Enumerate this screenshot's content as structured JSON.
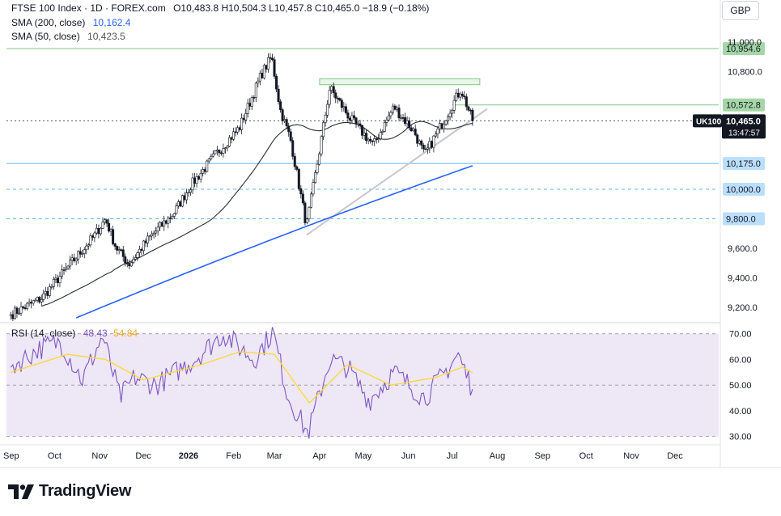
{
  "header": {
    "title": "FTSE 100 Index · 1D · FOREX.com",
    "ohlc": "O10,483.8  H10,504.3  L10,457.8  C10,465.0  −18.9 (−0.18%)",
    "sma200_label": "SMA (200, close)",
    "sma200_value": "10,162.4",
    "sma50_label": "SMA (50, close)",
    "sma50_value": "10,423.5",
    "currency": "GBP"
  },
  "rsi_header": {
    "label": "RSI (14, close)",
    "rsi_value": "48.43",
    "ma_value": "54.84"
  },
  "price_badge": {
    "symbol": "UK100",
    "price": "10,465.0",
    "countdown": "13:47:57"
  },
  "branding": {
    "name": "TradingView"
  },
  "colors": {
    "up": "#131722",
    "down": "#131722",
    "sma50": "#2a2e39",
    "sma200": "#2962ff",
    "rsi": "#7e57c2",
    "rsi_ma": "#fdd835",
    "rsi_band": "#ede7f6",
    "green_zone": "#a5d6a7",
    "blue_level": "#90caf9",
    "trendline": "#c7c7cc"
  },
  "chart_data": [
    {
      "type": "candlestick",
      "title": "FTSE 100 Index · 1D · FOREX.com",
      "x_labels": [
        "Sep",
        "Oct",
        "Nov",
        "Dec",
        "2026",
        "Feb",
        "Mar",
        "Apr",
        "May",
        "Jun",
        "Jul",
        "Aug",
        "Sep",
        "Oct",
        "Nov",
        "Dec"
      ],
      "y_ticks": [
        9200,
        9400,
        9600,
        9800,
        10000,
        10175,
        10465,
        10572.8,
        10800,
        10954.6,
        11000
      ],
      "y_tick_labels": [
        "9,200.0",
        "9,400.0",
        "9,600.0",
        "9,800.0",
        "10,000.0",
        "10,175.0",
        "10,465.0",
        "10,572.8",
        "10,800.0",
        "10,954.6",
        "11,000.0"
      ],
      "ylim": [
        9100,
        11120
      ],
      "close_anchors": [
        {
          "date": "2025-09-01",
          "close": 9150
        },
        {
          "date": "2025-09-22",
          "close": 9260
        },
        {
          "date": "2025-10-10",
          "close": 9470
        },
        {
          "date": "2025-10-28",
          "close": 9680
        },
        {
          "date": "2025-11-05",
          "close": 9800
        },
        {
          "date": "2025-11-12",
          "close": 9610
        },
        {
          "date": "2025-11-21",
          "close": 9490
        },
        {
          "date": "2025-12-05",
          "close": 9670
        },
        {
          "date": "2025-12-22",
          "close": 9840
        },
        {
          "date": "2026-01-02",
          "close": 10020
        },
        {
          "date": "2026-01-20",
          "close": 10240
        },
        {
          "date": "2026-02-05",
          "close": 10420
        },
        {
          "date": "2026-02-20",
          "close": 10780
        },
        {
          "date": "2026-02-27",
          "close": 10900
        },
        {
          "date": "2026-03-05",
          "close": 10540
        },
        {
          "date": "2026-03-12",
          "close": 10340
        },
        {
          "date": "2026-03-23",
          "close": 9750
        },
        {
          "date": "2026-03-31",
          "close": 10210
        },
        {
          "date": "2026-04-08",
          "close": 10690
        },
        {
          "date": "2026-04-22",
          "close": 10480
        },
        {
          "date": "2026-05-08",
          "close": 10300
        },
        {
          "date": "2026-05-22",
          "close": 10560
        },
        {
          "date": "2026-06-05",
          "close": 10390
        },
        {
          "date": "2026-06-12",
          "close": 10230
        },
        {
          "date": "2026-06-26",
          "close": 10480
        },
        {
          "date": "2026-07-07",
          "close": 10680
        },
        {
          "date": "2026-07-15",
          "close": 10465
        }
      ],
      "series": [
        {
          "name": "SMA (200, close)",
          "last": 10162.4
        },
        {
          "name": "SMA (50, close)",
          "last": 10423.5
        }
      ],
      "levels": [
        {
          "value": 10954.6,
          "label": "10,954.6"
        },
        {
          "value": 10572.8,
          "label": "10,572.8"
        },
        {
          "value": 10175.0,
          "label": "10,175.0"
        },
        {
          "value": 10000.0,
          "label": "10,000.0"
        },
        {
          "value": 9800.0,
          "label": "9,800.0"
        }
      ],
      "resistance_zone": {
        "from": "2026-04-01",
        "to": "2026-07-20",
        "low": 10710,
        "high": 10750
      },
      "trendline": {
        "from": {
          "date": "2026-03-23",
          "value": 9690
        },
        "to": {
          "date": "2026-07-25",
          "value": 10545
        }
      }
    },
    {
      "type": "line",
      "title": "RSI (14, close)",
      "y_ticks": [
        30,
        40,
        50,
        60,
        70
      ],
      "y_tick_labels": [
        "30.00",
        "40.00",
        "50.00",
        "60.00",
        "70.00"
      ],
      "ylim": [
        28,
        74
      ],
      "band": [
        30,
        70
      ],
      "series": [
        {
          "name": "RSI",
          "last": 48.43,
          "anchors": [
            {
              "date": "2025-09-01",
              "value": 57
            },
            {
              "date": "2025-09-20",
              "value": 64
            },
            {
              "date": "2025-10-05",
              "value": 67
            },
            {
              "date": "2025-10-20",
              "value": 52
            },
            {
              "date": "2025-11-03",
              "value": 69
            },
            {
              "date": "2025-11-15",
              "value": 45
            },
            {
              "date": "2025-11-25",
              "value": 53
            },
            {
              "date": "2025-12-10",
              "value": 50
            },
            {
              "date": "2026-01-05",
              "value": 60
            },
            {
              "date": "2026-01-25",
              "value": 70
            },
            {
              "date": "2026-02-15",
              "value": 60
            },
            {
              "date": "2026-02-28",
              "value": 71
            },
            {
              "date": "2026-03-10",
              "value": 46
            },
            {
              "date": "2026-03-24",
              "value": 31
            },
            {
              "date": "2026-04-08",
              "value": 60
            },
            {
              "date": "2026-04-20",
              "value": 57
            },
            {
              "date": "2026-05-05",
              "value": 44
            },
            {
              "date": "2026-05-22",
              "value": 55
            },
            {
              "date": "2026-06-12",
              "value": 45
            },
            {
              "date": "2026-06-25",
              "value": 54
            },
            {
              "date": "2026-07-05",
              "value": 62
            },
            {
              "date": "2026-07-15",
              "value": 48.43
            }
          ]
        },
        {
          "name": "RSI MA",
          "last": 54.84,
          "anchors": [
            {
              "date": "2025-09-01",
              "value": 55
            },
            {
              "date": "2025-10-10",
              "value": 62
            },
            {
              "date": "2025-11-05",
              "value": 60
            },
            {
              "date": "2025-12-01",
              "value": 52
            },
            {
              "date": "2026-01-10",
              "value": 58
            },
            {
              "date": "2026-02-05",
              "value": 63
            },
            {
              "date": "2026-03-01",
              "value": 62
            },
            {
              "date": "2026-03-25",
              "value": 43
            },
            {
              "date": "2026-04-20",
              "value": 58
            },
            {
              "date": "2026-05-20",
              "value": 50
            },
            {
              "date": "2026-06-20",
              "value": 53
            },
            {
              "date": "2026-07-08",
              "value": 57
            },
            {
              "date": "2026-07-15",
              "value": 54.84
            }
          ]
        }
      ]
    }
  ]
}
